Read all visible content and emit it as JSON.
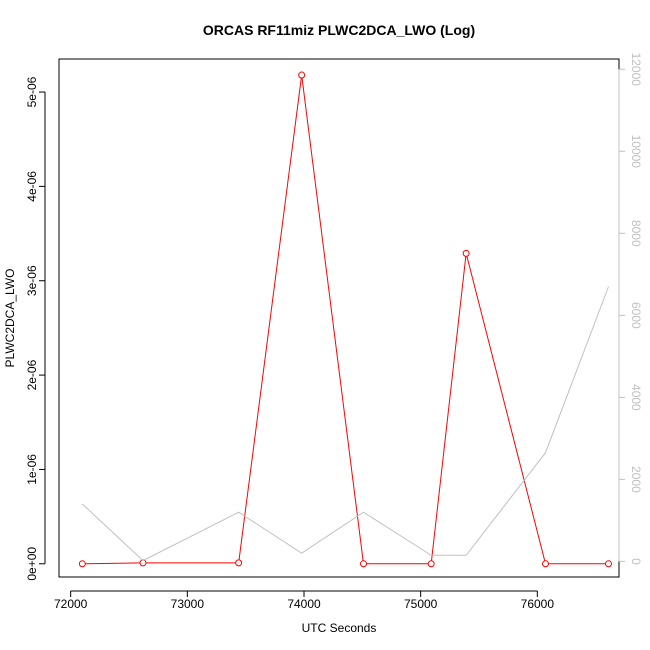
{
  "chart_data": {
    "type": "line",
    "title": "ORCAS RF11miz PLWC2DCA_LWO (Log)",
    "xlabel": "UTC Seconds",
    "ylabel": "PLWC2DCA_LWO",
    "xlim": [
      71900,
      76700
    ],
    "xticks": [
      72000,
      73000,
      74000,
      75000,
      76000
    ],
    "xtick_labels": [
      "72000",
      "73000",
      "74000",
      "75000",
      "76000"
    ],
    "ylim": [
      -1.4e-07,
      5.35e-06
    ],
    "yticks": [
      0,
      1e-06,
      2e-06,
      3e-06,
      4e-06,
      5e-06
    ],
    "ytick_labels": [
      "0e+00",
      "1e-06",
      "2e-06",
      "3e-06",
      "4e-06",
      "5e-06"
    ],
    "y2lim": [
      -380,
      12250
    ],
    "y2ticks": [
      0,
      2000,
      4000,
      6000,
      8000,
      10000,
      12000
    ],
    "y2tick_labels": [
      "0",
      "2000",
      "4000",
      "6000",
      "8000",
      "10000",
      "12000"
    ],
    "series": [
      {
        "axis": "left",
        "color": "#ff0000",
        "markers": true,
        "x": [
          72100,
          72620,
          73440,
          73980,
          74510,
          75090,
          75390,
          76070,
          76610
        ],
        "y": [
          0,
          1e-08,
          1e-08,
          5.18e-06,
          0,
          0,
          3.29e-06,
          0,
          0
        ]
      },
      {
        "axis": "right",
        "color": "#c0c0c0",
        "markers": false,
        "x": [
          72100,
          72620,
          73440,
          73980,
          74510,
          75090,
          75390,
          76070,
          76610
        ],
        "y": [
          1400,
          20,
          1200,
          200,
          1200,
          150,
          150,
          2650,
          6700
        ]
      }
    ]
  }
}
